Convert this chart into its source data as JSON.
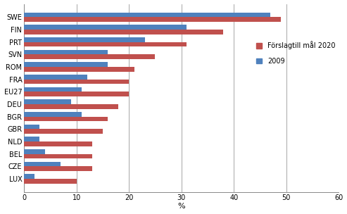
{
  "countries": [
    "SWE",
    "FIN",
    "PRT",
    "SVN",
    "ROM",
    "FRA",
    "EU27",
    "DEU",
    "BGR",
    "GBR",
    "NLD",
    "BEL",
    "CZE",
    "LUX"
  ],
  "proposal_2020": [
    49,
    38,
    31,
    25,
    21,
    20,
    20,
    18,
    16,
    15,
    13,
    13,
    13,
    10
  ],
  "actual_2009": [
    47,
    31,
    23,
    16,
    16,
    12,
    11,
    9,
    11,
    3,
    3,
    4,
    7,
    2
  ],
  "color_proposal": "#c0504d",
  "color_2009": "#4f81bd",
  "xlabel": "%",
  "xlim": [
    0,
    60
  ],
  "xticks": [
    0,
    10,
    20,
    30,
    40,
    50,
    60
  ],
  "legend_proposal": "Förslagtill mål 2020",
  "legend_2009": "2009",
  "bar_height": 0.38,
  "figsize": [
    4.93,
    3.04
  ],
  "dpi": 100,
  "grid_color": "#999999",
  "background_color": "#ffffff"
}
